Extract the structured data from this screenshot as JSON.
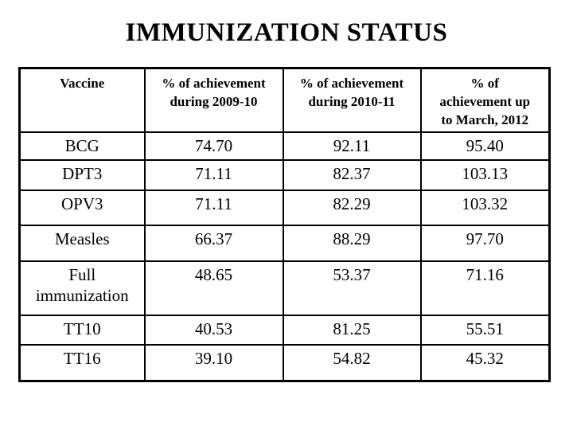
{
  "slide": {
    "title": "IMMUNIZATION STATUS"
  },
  "table": {
    "columns": [
      "Vaccine",
      "% of achievement\nduring 2009-10",
      "% of achievement\nduring 2010-11",
      "% of\nachievement up\nto March, 2012"
    ],
    "rows": [
      [
        "BCG",
        "74.70",
        "92.11",
        "95.40"
      ],
      [
        "DPT3",
        "71.11",
        "82.37",
        "103.13"
      ],
      [
        "OPV3",
        "71.11",
        "82.29",
        "103.32"
      ],
      [
        "Measles",
        "66.37",
        "88.29",
        "97.70"
      ],
      [
        "Full\nimmunization",
        "48.65",
        "53.37",
        "71.16"
      ],
      [
        "TT10",
        "40.53",
        "81.25",
        "55.51"
      ],
      [
        "TT16",
        "39.10",
        "54.82",
        "45.32"
      ]
    ]
  },
  "chart_data": {
    "type": "table",
    "title": "IMMUNIZATION STATUS",
    "categories": [
      "BCG",
      "DPT3",
      "OPV3",
      "Measles",
      "Full immunization",
      "TT10",
      "TT16"
    ],
    "series": [
      {
        "name": "% of achievement during 2009-10",
        "values": [
          74.7,
          71.11,
          71.11,
          66.37,
          48.65,
          40.53,
          39.1
        ]
      },
      {
        "name": "% of achievement during 2010-11",
        "values": [
          92.11,
          82.37,
          82.29,
          88.29,
          53.37,
          81.25,
          54.82
        ]
      },
      {
        "name": "% of achievement up to March, 2012",
        "values": [
          95.4,
          103.13,
          103.32,
          97.7,
          71.16,
          55.51,
          45.32
        ]
      }
    ],
    "colors": {
      "text": "#000000",
      "border": "#000000",
      "background": "#ffffff"
    }
  }
}
